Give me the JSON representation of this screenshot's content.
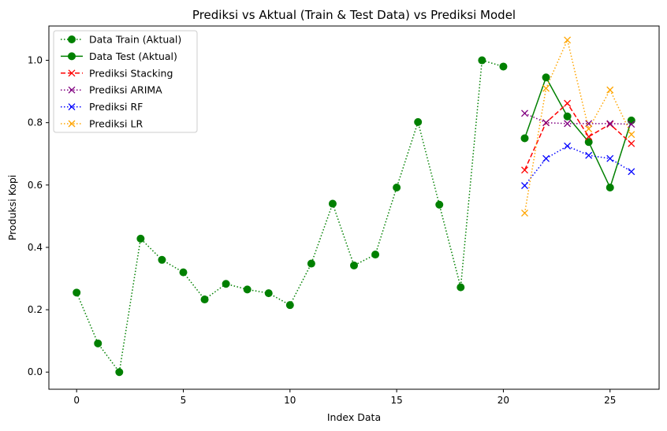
{
  "chart_data": {
    "type": "line",
    "title": "Prediksi vs Aktual (Train & Test Data) vs Prediksi Model",
    "xlabel": "Index Data",
    "ylabel": "Produksi Kopi",
    "xlim": [
      -1.3,
      27.3
    ],
    "ylim": [
      -0.055,
      1.11
    ],
    "xticks": [
      0,
      5,
      10,
      15,
      20,
      25
    ],
    "yticks": [
      0.0,
      0.2,
      0.4,
      0.6,
      0.8,
      1.0
    ],
    "xtick_labels": [
      "0",
      "5",
      "10",
      "15",
      "20",
      "25"
    ],
    "ytick_labels": [
      "0.0",
      "0.2",
      "0.4",
      "0.6",
      "0.8",
      "1.0"
    ],
    "grid": false,
    "legend_position": "top-left",
    "series": [
      {
        "name": "Data Train (Aktual)",
        "color": "#008000",
        "dash": "dotted",
        "marker": "circle",
        "x": [
          0,
          1,
          2,
          3,
          4,
          5,
          6,
          7,
          8,
          9,
          10,
          11,
          12,
          13,
          14,
          15,
          16,
          17,
          18,
          19,
          20
        ],
        "y": [
          0.255,
          0.092,
          0.0,
          0.428,
          0.36,
          0.32,
          0.233,
          0.283,
          0.265,
          0.253,
          0.215,
          0.348,
          0.54,
          0.342,
          0.377,
          0.592,
          0.802,
          0.537,
          0.272,
          1.0,
          0.98
        ]
      },
      {
        "name": "Data Test (Aktual)",
        "color": "#008000",
        "dash": "solid",
        "marker": "circle",
        "x": [
          21,
          22,
          23,
          24,
          25,
          26
        ],
        "y": [
          0.75,
          0.945,
          0.82,
          0.738,
          0.592,
          0.807
        ]
      },
      {
        "name": "Prediksi Stacking",
        "color": "#ff0000",
        "dash": "dashed",
        "marker": "x",
        "x": [
          21,
          22,
          23,
          24,
          25,
          26
        ],
        "y": [
          0.648,
          0.8,
          0.862,
          0.755,
          0.795,
          0.733
        ]
      },
      {
        "name": "Prediksi ARIMA",
        "color": "#800080",
        "dash": "dotted",
        "marker": "x",
        "x": [
          21,
          22,
          23,
          24,
          25,
          26
        ],
        "y": [
          0.83,
          0.8,
          0.797,
          0.797,
          0.797,
          0.795
        ]
      },
      {
        "name": "Prediksi RF",
        "color": "#0000ff",
        "dash": "dotted",
        "marker": "x",
        "x": [
          21,
          22,
          23,
          24,
          25,
          26
        ],
        "y": [
          0.598,
          0.685,
          0.725,
          0.695,
          0.685,
          0.643
        ]
      },
      {
        "name": "Prediksi LR",
        "color": "#ffa500",
        "dash": "dotted",
        "marker": "x",
        "x": [
          21,
          22,
          23,
          24,
          25,
          26
        ],
        "y": [
          0.51,
          0.91,
          1.065,
          0.78,
          0.905,
          0.762
        ]
      }
    ]
  }
}
